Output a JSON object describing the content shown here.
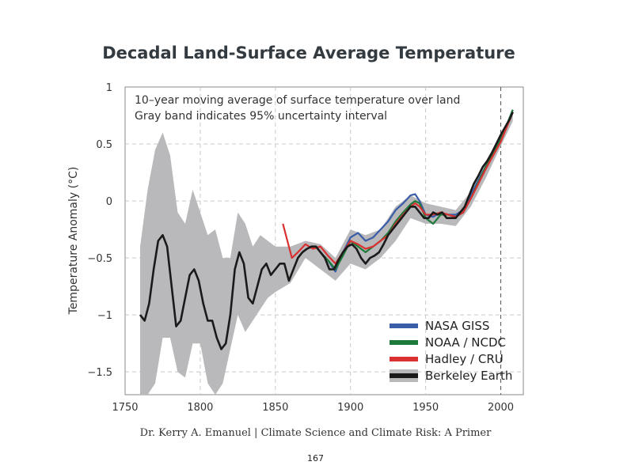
{
  "chart_data": {
    "type": "line",
    "title": "Decadal Land-Surface Average Temperature",
    "annotations": [
      "10–year moving average of surface temperature over land",
      "Gray band indicates 95% uncertainty interval"
    ],
    "ylabel": "Temperature Anomaly (°C)",
    "xlabel": "",
    "xlim": [
      1750,
      2015
    ],
    "ylim": [
      -1.7,
      1.0
    ],
    "xticks": [
      "1750",
      "1800",
      "1850",
      "1900",
      "1950",
      "2000"
    ],
    "yticks": [
      "1",
      "0.5",
      "0",
      "−0.5",
      "−1",
      "−1.5"
    ],
    "grid": true,
    "legend_position": "bottom-right",
    "series": [
      {
        "name": "NASA GISS",
        "color": "#3a5da8",
        "x": [
          1880,
          1885,
          1890,
          1895,
          1900,
          1905,
          1910,
          1915,
          1920,
          1925,
          1930,
          1935,
          1940,
          1943,
          1946,
          1950,
          1955,
          1960,
          1965,
          1970,
          1975,
          1980,
          1985,
          1990,
          1995,
          2000,
          2005,
          2008
        ],
        "y": [
          -0.45,
          -0.52,
          -0.62,
          -0.45,
          -0.32,
          -0.28,
          -0.35,
          -0.32,
          -0.25,
          -0.18,
          -0.08,
          -0.02,
          0.05,
          0.06,
          0.0,
          -0.12,
          -0.14,
          -0.1,
          -0.12,
          -0.12,
          -0.08,
          0.05,
          0.18,
          0.3,
          0.42,
          0.55,
          0.7,
          0.8
        ]
      },
      {
        "name": "NOAA / NCDC",
        "color": "#1e7a3a",
        "x": [
          1880,
          1885,
          1890,
          1895,
          1900,
          1905,
          1910,
          1915,
          1920,
          1925,
          1930,
          1935,
          1940,
          1943,
          1946,
          1950,
          1955,
          1960,
          1965,
          1970,
          1975,
          1980,
          1985,
          1990,
          1995,
          2000,
          2005,
          2008
        ],
        "y": [
          -0.45,
          -0.52,
          -0.6,
          -0.48,
          -0.35,
          -0.4,
          -0.45,
          -0.4,
          -0.35,
          -0.28,
          -0.18,
          -0.1,
          -0.03,
          0.0,
          -0.02,
          -0.15,
          -0.2,
          -0.12,
          -0.12,
          -0.14,
          -0.1,
          0.02,
          0.16,
          0.3,
          0.42,
          0.55,
          0.7,
          0.8
        ]
      },
      {
        "name": "Hadley / CRU",
        "color": "#d93030",
        "x": [
          1855,
          1858,
          1861,
          1865,
          1870,
          1875,
          1880,
          1885,
          1890,
          1895,
          1900,
          1905,
          1910,
          1915,
          1920,
          1925,
          1930,
          1935,
          1940,
          1943,
          1946,
          1950,
          1955,
          1960,
          1965,
          1970,
          1975,
          1980,
          1985,
          1990,
          1995,
          2000,
          2005,
          2008
        ],
        "y": [
          -0.2,
          -0.35,
          -0.5,
          -0.45,
          -0.38,
          -0.42,
          -0.4,
          -0.48,
          -0.55,
          -0.45,
          -0.35,
          -0.38,
          -0.42,
          -0.4,
          -0.35,
          -0.3,
          -0.2,
          -0.12,
          -0.05,
          -0.02,
          -0.05,
          -0.12,
          -0.12,
          -0.1,
          -0.12,
          -0.14,
          -0.1,
          0.02,
          0.15,
          0.28,
          0.4,
          0.52,
          0.68,
          0.78
        ]
      },
      {
        "name": "Berkeley Earth",
        "color": "#1a1a1a",
        "x": [
          1760,
          1763,
          1766,
          1769,
          1772,
          1775,
          1778,
          1781,
          1784,
          1787,
          1790,
          1793,
          1796,
          1799,
          1802,
          1805,
          1808,
          1811,
          1814,
          1817,
          1820,
          1823,
          1826,
          1829,
          1832,
          1835,
          1838,
          1841,
          1844,
          1847,
          1850,
          1853,
          1856,
          1859,
          1862,
          1865,
          1868,
          1871,
          1874,
          1877,
          1880,
          1883,
          1886,
          1889,
          1892,
          1895,
          1898,
          1901,
          1904,
          1907,
          1910,
          1913,
          1916,
          1919,
          1922,
          1925,
          1928,
          1931,
          1934,
          1937,
          1940,
          1943,
          1946,
          1949,
          1952,
          1955,
          1958,
          1961,
          1964,
          1967,
          1970,
          1973,
          1976,
          1979,
          1982,
          1985,
          1988,
          1991,
          1994,
          1997,
          2000,
          2003,
          2006,
          2008
        ],
        "y": [
          -1.0,
          -1.05,
          -0.9,
          -0.6,
          -0.35,
          -0.3,
          -0.4,
          -0.75,
          -1.1,
          -1.05,
          -0.85,
          -0.65,
          -0.6,
          -0.7,
          -0.9,
          -1.05,
          -1.05,
          -1.2,
          -1.3,
          -1.25,
          -1.0,
          -0.6,
          -0.45,
          -0.55,
          -0.85,
          -0.9,
          -0.75,
          -0.6,
          -0.55,
          -0.65,
          -0.6,
          -0.55,
          -0.55,
          -0.7,
          -0.6,
          -0.5,
          -0.45,
          -0.42,
          -0.4,
          -0.4,
          -0.45,
          -0.5,
          -0.6,
          -0.6,
          -0.52,
          -0.45,
          -0.4,
          -0.38,
          -0.42,
          -0.5,
          -0.55,
          -0.5,
          -0.48,
          -0.45,
          -0.38,
          -0.3,
          -0.25,
          -0.2,
          -0.15,
          -0.1,
          -0.05,
          -0.05,
          -0.1,
          -0.15,
          -0.15,
          -0.1,
          -0.12,
          -0.1,
          -0.15,
          -0.15,
          -0.15,
          -0.1,
          -0.05,
          0.05,
          0.15,
          0.22,
          0.3,
          0.35,
          0.42,
          0.5,
          0.58,
          0.65,
          0.72,
          0.78
        ]
      }
    ],
    "uncertainty_band": {
      "color": "#b9b9bc",
      "x": [
        1760,
        1765,
        1770,
        1775,
        1780,
        1785,
        1790,
        1795,
        1800,
        1805,
        1810,
        1815,
        1820,
        1825,
        1830,
        1835,
        1840,
        1845,
        1850,
        1860,
        1870,
        1880,
        1890,
        1900,
        1910,
        1920,
        1930,
        1940,
        1950,
        1960,
        1970,
        1980,
        1990,
        2000,
        2008
      ],
      "upper": [
        -0.4,
        0.1,
        0.45,
        0.6,
        0.4,
        -0.1,
        -0.2,
        0.1,
        -0.1,
        -0.3,
        -0.25,
        -0.5,
        -0.5,
        -0.1,
        -0.2,
        -0.4,
        -0.3,
        -0.35,
        -0.4,
        -0.4,
        -0.35,
        -0.38,
        -0.5,
        -0.25,
        -0.3,
        -0.25,
        -0.05,
        0.05,
        -0.02,
        -0.05,
        -0.08,
        0.08,
        0.35,
        0.58,
        0.8
      ],
      "lower": [
        -1.7,
        -1.7,
        -1.6,
        -1.2,
        -1.2,
        -1.5,
        -1.55,
        -1.25,
        -1.25,
        -1.6,
        -1.7,
        -1.6,
        -1.3,
        -1.0,
        -1.15,
        -1.05,
        -0.95,
        -0.85,
        -0.8,
        -0.72,
        -0.5,
        -0.6,
        -0.7,
        -0.55,
        -0.6,
        -0.5,
        -0.35,
        -0.15,
        -0.2,
        -0.2,
        -0.22,
        -0.05,
        0.2,
        0.48,
        0.7
      ]
    }
  },
  "footer": {
    "citation": "Dr. Kerry A. Emanuel | Climate Science and Climate Risk: A Primer",
    "page_number": "167"
  }
}
